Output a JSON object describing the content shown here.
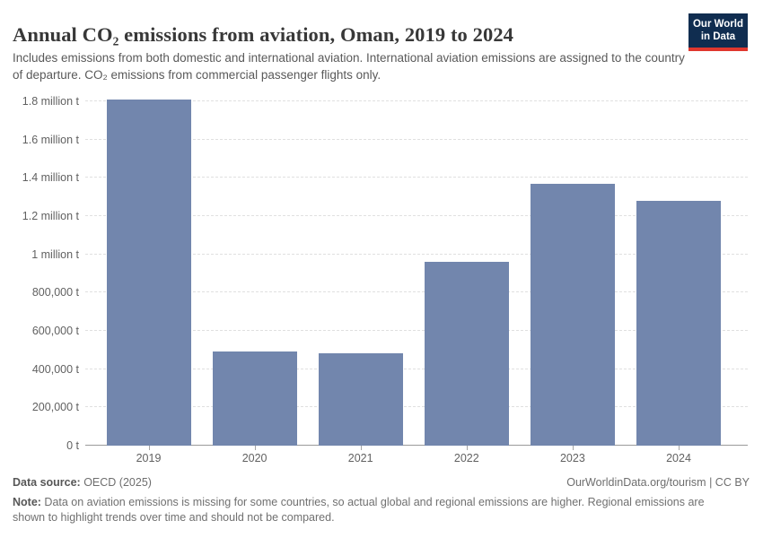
{
  "header": {
    "title": "Annual CO₂ emissions from aviation, Oman, 2019 to 2024",
    "subtitle": "Includes emissions from both domestic and international aviation. International aviation emissions are assigned to the country of departure. CO₂ emissions from commercial passenger flights only.",
    "logo": {
      "line1": "Our World",
      "line2": "in Data",
      "bg_color": "#102d50",
      "accent_color": "#e0372e"
    }
  },
  "chart_data": {
    "type": "bar",
    "title": "Annual CO₂ emissions from aviation, Oman, 2019 to 2024",
    "categories": [
      "2019",
      "2020",
      "2021",
      "2022",
      "2023",
      "2024"
    ],
    "values": [
      1810000,
      490000,
      485000,
      960000,
      1370000,
      1280000
    ],
    "unit": "t",
    "bar_color": "#7286ad",
    "ylim": [
      0,
      1800000
    ],
    "grid": "horizontal-dashed",
    "legend": "none",
    "yticks": [
      {
        "value": 0,
        "label": "0 t"
      },
      {
        "value": 200000,
        "label": "200,000 t"
      },
      {
        "value": 400000,
        "label": "400,000 t"
      },
      {
        "value": 600000,
        "label": "600,000 t"
      },
      {
        "value": 800000,
        "label": "800,000 t"
      },
      {
        "value": 1000000,
        "label": "1 million t"
      },
      {
        "value": 1200000,
        "label": "1.2 million t"
      },
      {
        "value": 1400000,
        "label": "1.4 million t"
      },
      {
        "value": 1600000,
        "label": "1.6 million t"
      },
      {
        "value": 1800000,
        "label": "1.8 million t"
      }
    ]
  },
  "footer": {
    "datasource_label": "Data source:",
    "datasource_value": " OECD (2025)",
    "credit": "OurWorldinData.org/tourism | CC BY",
    "note_label": "Note:",
    "note_text": " Data on aviation emissions is missing for some countries, so actual global and regional emissions are higher. Regional emissions are shown to highlight trends over time and should not be compared."
  }
}
